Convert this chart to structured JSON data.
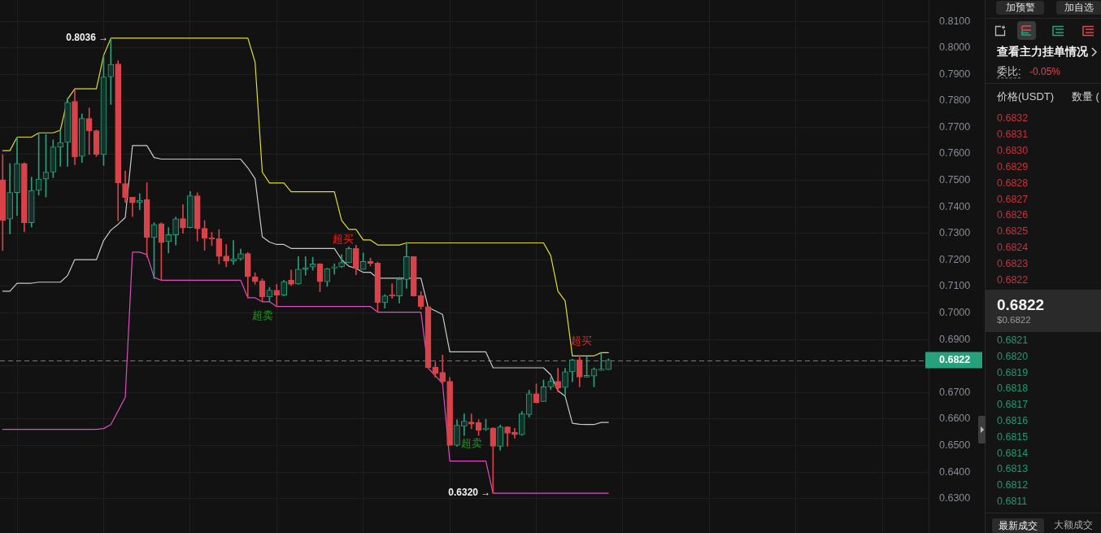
{
  "chart_data": {
    "type": "candlestick",
    "categories": [
      null,
      null,
      null,
      null,
      null,
      null,
      null,
      null,
      null,
      null,
      null,
      null,
      null,
      null,
      null,
      null,
      null,
      null,
      null,
      null,
      null,
      null,
      null,
      null,
      null,
      null,
      null,
      null,
      null,
      null,
      null,
      null,
      null,
      null,
      null,
      null,
      null,
      null,
      null,
      null,
      null,
      null,
      null,
      null,
      null,
      null,
      null,
      null,
      null,
      null,
      null,
      null,
      null,
      null,
      null,
      null,
      null,
      null,
      null,
      null,
      null,
      null,
      null,
      null,
      null,
      null,
      null,
      null,
      null,
      null,
      null,
      null,
      null,
      null,
      null,
      null,
      null,
      null,
      null,
      null,
      null,
      null,
      null,
      null,
      null
    ],
    "ohlc": [
      [
        0.7502,
        0.7597,
        0.7235,
        0.7349
      ],
      [
        0.7354,
        0.7563,
        0.7298,
        0.7454
      ],
      [
        0.7454,
        0.7663,
        0.7367,
        0.7564
      ],
      [
        0.7564,
        0.7566,
        0.7306,
        0.734
      ],
      [
        0.734,
        0.7512,
        0.7324,
        0.7462
      ],
      [
        0.7462,
        0.7679,
        0.7444,
        0.7505
      ],
      [
        0.7505,
        0.7673,
        0.7437,
        0.7531
      ],
      [
        0.7531,
        0.7653,
        0.751,
        0.7626
      ],
      [
        0.7625,
        0.7689,
        0.7553,
        0.7643
      ],
      [
        0.7643,
        0.7811,
        0.7553,
        0.7794
      ],
      [
        0.7798,
        0.7842,
        0.7559,
        0.7588
      ],
      [
        0.759,
        0.775,
        0.7567,
        0.7733
      ],
      [
        0.7733,
        0.7773,
        0.7597,
        0.7686
      ],
      [
        0.7687,
        0.769,
        0.759,
        0.7597
      ],
      [
        0.7597,
        0.7971,
        0.7556,
        0.789
      ],
      [
        0.789,
        0.8036,
        0.7786,
        0.7937
      ],
      [
        0.7939,
        0.7951,
        0.7347,
        0.749
      ],
      [
        0.7488,
        0.7535,
        0.7417,
        0.7435
      ],
      [
        0.7436,
        0.7436,
        0.7363,
        0.7415
      ],
      [
        0.7416,
        0.745,
        0.7389,
        0.7425
      ],
      [
        0.7427,
        0.7491,
        0.721,
        0.7284
      ],
      [
        0.7284,
        0.734,
        0.7129,
        0.7333
      ],
      [
        0.7337,
        0.734,
        0.7123,
        0.7265
      ],
      [
        0.7269,
        0.7322,
        0.7226,
        0.7295
      ],
      [
        0.7294,
        0.7361,
        0.7256,
        0.7355
      ],
      [
        0.7356,
        0.7409,
        0.73,
        0.732
      ],
      [
        0.7322,
        0.7458,
        0.732,
        0.7442
      ],
      [
        0.7442,
        0.7453,
        0.7271,
        0.7317
      ],
      [
        0.7319,
        0.7348,
        0.7236,
        0.7282
      ],
      [
        0.7283,
        0.7304,
        0.7254,
        0.7278
      ],
      [
        0.728,
        0.7314,
        0.7185,
        0.7213
      ],
      [
        0.7215,
        0.7258,
        0.7174,
        0.7195
      ],
      [
        0.7196,
        0.7273,
        0.7183,
        0.7204
      ],
      [
        0.7204,
        0.7241,
        0.7198,
        0.7223
      ],
      [
        0.7224,
        0.7228,
        0.7057,
        0.7137
      ],
      [
        0.7136,
        0.7151,
        0.7108,
        0.7118
      ],
      [
        0.712,
        0.7129,
        0.7042,
        0.706
      ],
      [
        0.706,
        0.7096,
        0.7042,
        0.7086
      ],
      [
        0.7086,
        0.7108,
        0.7024,
        0.7067
      ],
      [
        0.7067,
        0.7123,
        0.7065,
        0.7118
      ],
      [
        0.7123,
        0.7162,
        0.7103,
        0.7108
      ],
      [
        0.7109,
        0.7212,
        0.7108,
        0.7165
      ],
      [
        0.7165,
        0.7212,
        0.7142,
        0.7171
      ],
      [
        0.7173,
        0.721,
        0.7161,
        0.7185
      ],
      [
        0.7185,
        0.7186,
        0.708,
        0.7118
      ],
      [
        0.7118,
        0.7169,
        0.71,
        0.7167
      ],
      [
        0.7169,
        0.7185,
        0.7146,
        0.7174
      ],
      [
        0.7174,
        0.722,
        0.7171,
        0.719
      ],
      [
        0.7189,
        0.7249,
        0.7189,
        0.7243
      ],
      [
        0.7243,
        0.7255,
        0.7144,
        0.7167
      ],
      [
        0.7164,
        0.7226,
        0.7164,
        0.7194
      ],
      [
        0.7194,
        0.7207,
        0.7177,
        0.7187
      ],
      [
        0.7188,
        0.7192,
        0.7006,
        0.7039
      ],
      [
        0.7039,
        0.7069,
        0.7018,
        0.7064
      ],
      [
        0.7068,
        0.711,
        0.7055,
        0.7063
      ],
      [
        0.7064,
        0.7134,
        0.7037,
        0.7127
      ],
      [
        0.7126,
        0.7266,
        0.7093,
        0.7212
      ],
      [
        0.7212,
        0.7213,
        0.7063,
        0.7064
      ],
      [
        0.7065,
        0.7081,
        0.7014,
        0.7024
      ],
      [
        0.7024,
        0.7025,
        0.6792,
        0.6793
      ],
      [
        0.6795,
        0.6815,
        0.6757,
        0.6772
      ],
      [
        0.6776,
        0.6841,
        0.6732,
        0.674
      ],
      [
        0.6742,
        0.6757,
        0.65,
        0.6501
      ],
      [
        0.6501,
        0.6597,
        0.6497,
        0.6576
      ],
      [
        0.6572,
        0.6619,
        0.6538,
        0.6592
      ],
      [
        0.6589,
        0.6619,
        0.6563,
        0.6581
      ],
      [
        0.6586,
        0.6597,
        0.6538,
        0.6558
      ],
      [
        0.656,
        0.6599,
        0.6556,
        0.6566
      ],
      [
        0.6566,
        0.6568,
        0.632,
        0.6497
      ],
      [
        0.6497,
        0.6577,
        0.6482,
        0.657
      ],
      [
        0.657,
        0.6572,
        0.6497,
        0.6546
      ],
      [
        0.655,
        0.6565,
        0.6528,
        0.6541
      ],
      [
        0.6541,
        0.6628,
        0.6538,
        0.6619
      ],
      [
        0.6617,
        0.6708,
        0.6607,
        0.6695
      ],
      [
        0.6695,
        0.6732,
        0.666,
        0.6662
      ],
      [
        0.6666,
        0.6747,
        0.6666,
        0.6721
      ],
      [
        0.6721,
        0.6757,
        0.6711,
        0.6742
      ],
      [
        0.6742,
        0.6791,
        0.6703,
        0.6717
      ],
      [
        0.6719,
        0.6791,
        0.6689,
        0.6778
      ],
      [
        0.6778,
        0.6826,
        0.674,
        0.6823
      ],
      [
        0.6823,
        0.6839,
        0.6721,
        0.6758
      ],
      [
        0.6758,
        0.6836,
        0.6758,
        0.6764
      ],
      [
        0.6762,
        0.6793,
        0.6721,
        0.6788
      ],
      [
        0.6783,
        0.6849,
        0.6783,
        0.6788
      ],
      [
        0.6786,
        0.6827,
        0.6786,
        0.6822
      ]
    ],
    "colors": [
      "#d8434a",
      "#26a17b",
      "#26a17b",
      "#d8434a",
      "#26a17b",
      "#26a17b",
      "#26a17b",
      "#26a17b",
      "#26a17b",
      "#26a17b",
      "#d8434a",
      "#26a17b",
      "#d8434a",
      "#d8434a",
      "#26a17b",
      "#26a17b",
      "#d8434a",
      "#d8434a",
      "#d8434a",
      "#26a17b",
      "#d8434a",
      "#26a17b",
      "#d8434a",
      "#26a17b",
      "#26a17b",
      "#d8434a",
      "#26a17b",
      "#d8434a",
      "#d8434a",
      "#d8434a",
      "#d8434a",
      "#d8434a",
      "#26a17b",
      "#26a17b",
      "#d8434a",
      "#d8434a",
      "#d8434a",
      "#26a17b",
      "#d8434a",
      "#26a17b",
      "#d8434a",
      "#26a17b",
      "#26a17b",
      "#26a17b",
      "#d8434a",
      "#26a17b",
      "#26a17b",
      "#26a17b",
      "#26a17b",
      "#d8434a",
      "#26a17b",
      "#d8434a",
      "#d8434a",
      "#26a17b",
      "#d8434a",
      "#26a17b",
      "#26a17b",
      "#d8434a",
      "#d8434a",
      "#d8434a",
      "#d8434a",
      "#d8434a",
      "#d8434a",
      "#26a17b",
      "#26a17b",
      "#d8434a",
      "#d8434a",
      "#26a17b",
      "#d8434a",
      "#26a17b",
      "#d8434a",
      "#d8434a",
      "#26a17b",
      "#26a17b",
      "#d8434a",
      "#26a17b",
      "#26a17b",
      "#d8434a",
      "#26a17b",
      "#26a17b",
      "#d8434a",
      "#26a17b",
      "#26a17b",
      "#26a17b",
      "#26a17b"
    ],
    "series": [
      {
        "type": "line",
        "color": "#e3dc2b",
        "values": [
          0.7612,
          0.7612,
          0.7663,
          0.7663,
          0.7663,
          0.7679,
          0.7679,
          0.7679,
          0.7689,
          0.7806,
          0.7845,
          0.7845,
          0.7845,
          0.7845,
          0.7971,
          0.8036,
          0.8036,
          0.8036,
          0.8036,
          0.8036,
          0.8036,
          0.8036,
          0.8036,
          0.8036,
          0.8036,
          0.8036,
          0.8036,
          0.8036,
          0.8036,
          0.8036,
          0.8036,
          0.8036,
          0.8036,
          0.8036,
          0.8036,
          0.7946,
          0.7531,
          0.749,
          0.749,
          0.749,
          0.7457,
          0.7457,
          0.7457,
          0.7457,
          0.7457,
          0.7457,
          0.7457,
          0.7349,
          0.7315,
          0.7315,
          0.7275,
          0.7275,
          0.7256,
          0.7256,
          0.7256,
          0.7256,
          0.7264,
          0.7264,
          0.7264,
          0.7264,
          0.7264,
          0.7264,
          0.7264,
          0.7264,
          0.7264,
          0.7264,
          0.7264,
          0.7264,
          0.7264,
          0.7264,
          0.7264,
          0.7264,
          0.7264,
          0.7264,
          0.7264,
          0.7264,
          0.7216,
          0.7082,
          0.7045,
          0.6838,
          0.6838,
          0.6838,
          0.6838,
          0.685,
          0.685
        ]
      },
      {
        "type": "line",
        "color": "#c9c9c9",
        "values": [
          0.7082,
          0.7082,
          0.7112,
          0.7112,
          0.7112,
          0.7116,
          0.7116,
          0.7116,
          0.7116,
          0.7141,
          0.7201,
          0.7201,
          0.7201,
          0.7201,
          0.7273,
          0.7312,
          0.7334,
          0.736,
          0.7631,
          0.7631,
          0.7631,
          0.7586,
          0.758,
          0.758,
          0.758,
          0.758,
          0.758,
          0.758,
          0.758,
          0.758,
          0.758,
          0.758,
          0.758,
          0.758,
          0.7547,
          0.7506,
          0.7287,
          0.7267,
          0.7258,
          0.7258,
          0.7243,
          0.7243,
          0.7243,
          0.7243,
          0.7243,
          0.7243,
          0.7243,
          0.7201,
          0.7176,
          0.7168,
          0.7153,
          0.7153,
          0.7131,
          0.7131,
          0.7131,
          0.7131,
          0.7131,
          0.7131,
          0.7131,
          0.7021,
          0.7008,
          0.6994,
          0.6853,
          0.6853,
          0.6853,
          0.6853,
          0.6853,
          0.6853,
          0.6793,
          0.6793,
          0.6793,
          0.6793,
          0.6793,
          0.6793,
          0.6793,
          0.6793,
          0.6767,
          0.6706,
          0.6686,
          0.6584,
          0.658,
          0.6579,
          0.6579,
          0.6587,
          0.6587
        ]
      },
      {
        "type": "line",
        "color": "#d94fbf",
        "values": [
          0.6561,
          0.6561,
          0.6561,
          0.6561,
          0.6561,
          0.6561,
          0.6561,
          0.6561,
          0.6561,
          0.6561,
          0.6561,
          0.6561,
          0.6561,
          0.6561,
          0.6564,
          0.6579,
          0.663,
          0.6682,
          0.7229,
          0.7229,
          0.722,
          0.7134,
          0.7123,
          0.7123,
          0.7123,
          0.7123,
          0.7123,
          0.7123,
          0.7123,
          0.7123,
          0.7123,
          0.7123,
          0.7123,
          0.7123,
          0.7057,
          0.7057,
          0.7042,
          0.7042,
          0.7024,
          0.7024,
          0.7024,
          0.7024,
          0.7024,
          0.7024,
          0.7024,
          0.7024,
          0.7024,
          0.7024,
          0.7024,
          0.7024,
          0.7024,
          0.7024,
          0.7003,
          0.7003,
          0.7003,
          0.7003,
          0.7003,
          0.7003,
          0.7003,
          0.6792,
          0.6763,
          0.6734,
          0.6441,
          0.6441,
          0.6441,
          0.6441,
          0.6441,
          0.6441,
          0.632,
          0.632,
          0.632,
          0.632,
          0.632,
          0.632,
          0.632,
          0.632,
          0.632,
          0.632,
          0.632,
          0.632,
          0.632,
          0.632,
          0.632,
          0.632,
          0.632
        ]
      }
    ],
    "ylim": [
      0.617,
      0.818
    ],
    "yticks": [
      {
        "value": 0.63,
        "label": "0.6300"
      },
      {
        "value": 0.64,
        "label": "0.6400"
      },
      {
        "value": 0.65,
        "label": "0.6500"
      },
      {
        "value": 0.66,
        "label": "0.6600"
      },
      {
        "value": 0.67,
        "label": "0.6700"
      },
      {
        "value": 0.68,
        "label": null
      },
      {
        "value": 0.69,
        "label": "0.6900"
      },
      {
        "value": 0.7,
        "label": "0.7000"
      },
      {
        "value": 0.71,
        "label": "0.7100"
      },
      {
        "value": 0.72,
        "label": "0.7200"
      },
      {
        "value": 0.73,
        "label": "0.7300"
      },
      {
        "value": 0.74,
        "label": "0.7400"
      },
      {
        "value": 0.75,
        "label": "0.7500"
      },
      {
        "value": 0.76,
        "label": "0.7600"
      },
      {
        "value": 0.77,
        "label": "0.7700"
      },
      {
        "value": 0.78,
        "label": "0.7800"
      },
      {
        "value": 0.79,
        "label": "0.7900"
      },
      {
        "value": 0.8,
        "label": "0.8000"
      },
      {
        "value": 0.81,
        "label": "0.8100"
      }
    ],
    "grid": true,
    "tick_labels": "y",
    "ref_lines": [
      {
        "axis": "y",
        "value": 0.6822,
        "label": "0.6822",
        "color": "#26a17b",
        "line_style": "dashed"
      }
    ],
    "annotations": [
      "0.8036 →",
      {
        "text": "超卖",
        "y": 0.7042
      },
      {
        "text": "超买",
        "y": 0.722
      },
      {
        "text": "超卖",
        "y": 0.6563
      },
      "0.6320 →",
      {
        "text": "超买",
        "y": 0.6839
      },
      "加预警",
      "加自选",
      "查看主力挂单情况",
      "委比:",
      "-0.05%",
      "价格(USDT)",
      "数量 (",
      "0.6832",
      "0.6831",
      "0.6830",
      "0.6829",
      "0.6828",
      "0.6827",
      "0.6826",
      "0.6825",
      "0.6824",
      "0.6823",
      "0.6822",
      "0.6822",
      "$0.6822",
      "0.6821",
      "0.6820",
      "0.6819",
      "0.6818",
      "0.6817",
      "0.6816",
      "0.6815",
      "0.6814",
      "0.6813",
      "0.6812",
      "0.6811",
      "最新成交",
      "大额成交"
    ]
  }
}
